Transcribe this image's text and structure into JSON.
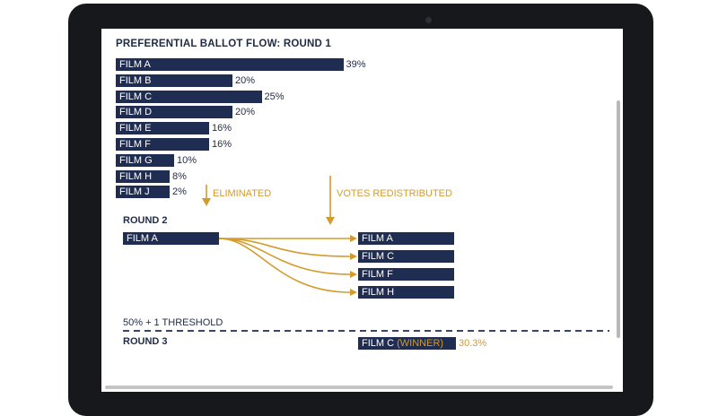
{
  "chart_title": "PREFERENTIAL BALLOT FLOW: ROUND 1",
  "chart_data": {
    "type": "bar",
    "orientation": "horizontal",
    "title": "PREFERENTIAL BALLOT FLOW: ROUND 1",
    "categories": [
      "FILM A",
      "FILM B",
      "FILM C",
      "FILM D",
      "FILM E",
      "FILM F",
      "FILM G",
      "FILM H",
      "FILM J"
    ],
    "values": [
      39,
      20,
      25,
      20,
      16,
      16,
      10,
      8,
      2
    ],
    "value_labels": [
      "39%",
      "20%",
      "25%",
      "20%",
      "16%",
      "16%",
      "10%",
      "8%",
      "2%"
    ],
    "bar_color": "#1f2d52"
  },
  "annotations": {
    "eliminated": "ELIMINATED",
    "redistributed": "VOTES REDISTRIBUTED"
  },
  "round2": {
    "heading": "ROUND 2",
    "source": "FILM A",
    "targets": [
      "FILM A",
      "FILM C",
      "FILM F",
      "FILM H"
    ]
  },
  "threshold_label": "50% + 1 THRESHOLD",
  "round3": {
    "heading": "ROUND 3",
    "film": "FILM C",
    "winner_tag": "(WINNER)",
    "value": "30.3%"
  },
  "colors": {
    "navy": "#1f2d52",
    "gold": "#d39b2b"
  }
}
